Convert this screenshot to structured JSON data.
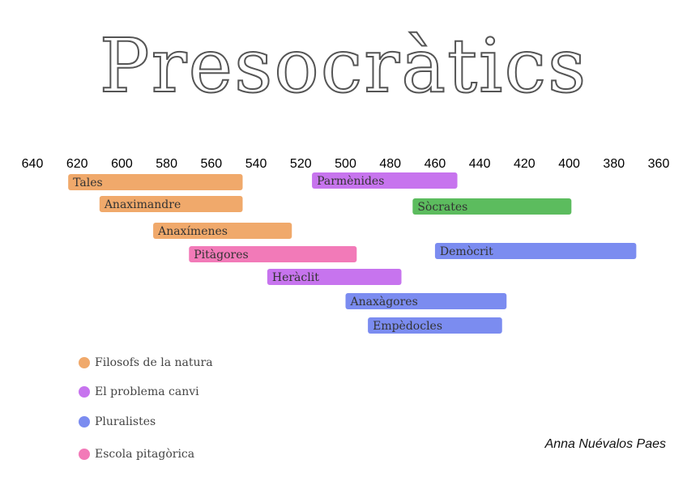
{
  "chart_data": {
    "type": "bar",
    "title": "Presocràtics",
    "x_ticks": [
      640,
      620,
      600,
      580,
      560,
      540,
      520,
      500,
      480,
      460,
      440,
      420,
      400,
      380,
      360
    ],
    "xlim": [
      640,
      360
    ],
    "bars": [
      {
        "label": "Tales",
        "start": 624,
        "end": 546,
        "category": "Filosofs de la natura"
      },
      {
        "label": "Anaximandre",
        "start": 610,
        "end": 546,
        "category": "Filosofs de la natura"
      },
      {
        "label": "Anaxímenes",
        "start": 586,
        "end": 524,
        "category": "Filosofs de la natura"
      },
      {
        "label": "Pitàgores",
        "start": 570,
        "end": 495,
        "category": "Escola pitagòrica"
      },
      {
        "label": "Heràclit",
        "start": 535,
        "end": 475,
        "category": "El problema canvi"
      },
      {
        "label": "Anaxàgores",
        "start": 500,
        "end": 428,
        "category": "Pluralistes"
      },
      {
        "label": "Empèdocles",
        "start": 490,
        "end": 430,
        "category": "Pluralistes"
      },
      {
        "label": "Parmènides",
        "start": 515,
        "end": 450,
        "category": "El problema canvi"
      },
      {
        "label": "Sòcrates",
        "start": 470,
        "end": 399,
        "category": "Sòcrates"
      },
      {
        "label": "Demòcrit",
        "start": 460,
        "end": 370,
        "category": "Pluralistes"
      }
    ]
  },
  "legend": [
    {
      "label": "Filosofs de la natura",
      "color": "#f0a96b"
    },
    {
      "label": "El problema canvi",
      "color": "#c774ee"
    },
    {
      "label": "Pluralistes",
      "color": "#7b8cf0"
    },
    {
      "label": "Escola pitagòrica",
      "color": "#f27ab8"
    }
  ],
  "colors": {
    "Filosofs de la natura": "#f0a96b",
    "El problema canvi": "#c774ee",
    "Pluralistes": "#7b8cf0",
    "Escola pitagòrica": "#f27ab8",
    "Sòcrates": "#5cbc5e"
  },
  "author": "Anna Nuévalos Paes"
}
